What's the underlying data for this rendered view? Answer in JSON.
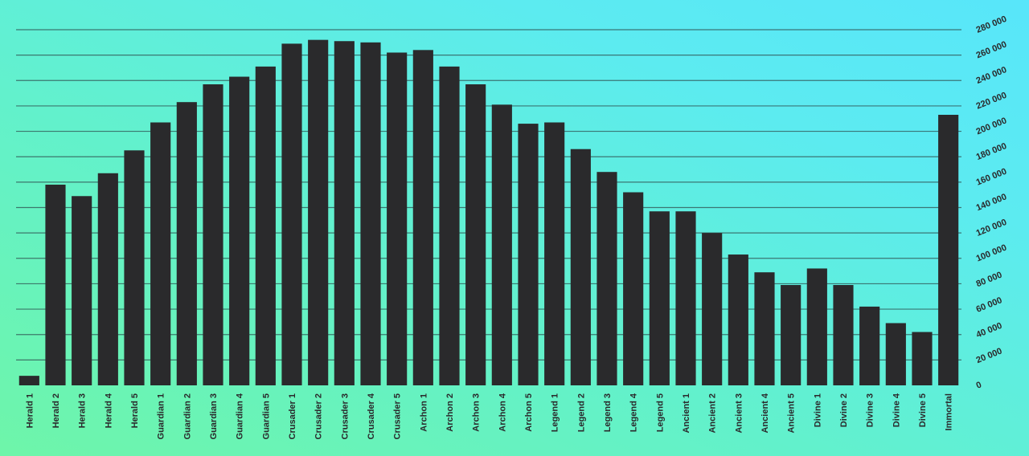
{
  "chart_data": {
    "type": "bar",
    "title": "",
    "xlabel": "",
    "ylabel": "",
    "categories": [
      "Herald 1",
      "Herald 2",
      "Herald 3",
      "Herald 4",
      "Herald 5",
      "Guardian 1",
      "Guardian 2",
      "Guardian 3",
      "Guardian 4",
      "Guardian 5",
      "Crusader 1",
      "Crusader 2",
      "Crusader 3",
      "Crusader 4",
      "Crusader 5",
      "Archon 1",
      "Archon 2",
      "Archon 3",
      "Archon 4",
      "Archon 5",
      "Legend 1",
      "Legend 2",
      "Legend 3",
      "Legend 4",
      "Legend 5",
      "Ancient 1",
      "Ancient 2",
      "Ancient 3",
      "Ancient 4",
      "Ancient 5",
      "Divine 1",
      "Divine 2",
      "Divine 3",
      "Divine 4",
      "Divine 5",
      "Immortal"
    ],
    "values": [
      7500,
      158000,
      149000,
      167000,
      185000,
      207000,
      223000,
      237000,
      243000,
      251000,
      269000,
      272000,
      271000,
      270000,
      262000,
      264000,
      251000,
      237000,
      221000,
      206000,
      207000,
      186000,
      168000,
      152000,
      137000,
      137000,
      120000,
      103000,
      89000,
      79000,
      92000,
      79000,
      62000,
      49000,
      42000,
      213000
    ],
    "ylim": [
      0,
      280000
    ],
    "yticks": [
      0,
      20000,
      40000,
      60000,
      80000,
      100000,
      120000,
      140000,
      160000,
      180000,
      200000,
      220000,
      240000,
      260000,
      280000
    ],
    "ytick_labels": [
      "0",
      "20 000",
      "40 000",
      "60 000",
      "80 000",
      "100 000",
      "120 000",
      "140 000",
      "160 000",
      "180 000",
      "200 000",
      "220 000",
      "240 000",
      "260 000",
      "280 000"
    ],
    "yaxis_side": "right",
    "grid": true,
    "legend": "none",
    "colors": {
      "bar": "#2a2a2c",
      "grid": "#2f4f4f",
      "background_start": "#6ef5a9",
      "background_end": "#58e6fa"
    }
  }
}
